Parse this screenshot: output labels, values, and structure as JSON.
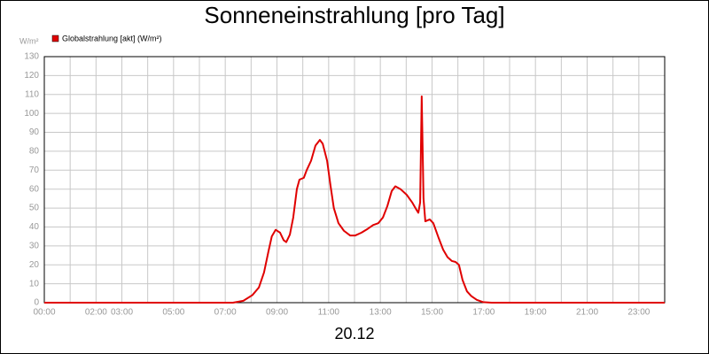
{
  "chart_data": {
    "type": "line",
    "title": "Sonneneinstrahlung [pro Tag]",
    "y_unit": "W/m²",
    "xlabel": "20.12",
    "legend": "top-left",
    "grid": true,
    "xlim": [
      0,
      24
    ],
    "ylim": [
      0,
      130
    ],
    "yticks": [
      0,
      10,
      20,
      30,
      40,
      50,
      60,
      70,
      80,
      90,
      100,
      110,
      120,
      130
    ],
    "xticks": [
      {
        "value": 0,
        "label": "00:00"
      },
      {
        "value": 2,
        "label": "02:00"
      },
      {
        "value": 3,
        "label": "03:00"
      },
      {
        "value": 5,
        "label": "05:00"
      },
      {
        "value": 7,
        "label": "07:00"
      },
      {
        "value": 9,
        "label": "09:00"
      },
      {
        "value": 11,
        "label": "11:00"
      },
      {
        "value": 13,
        "label": "13:00"
      },
      {
        "value": 15,
        "label": "15:00"
      },
      {
        "value": 17,
        "label": "17:00"
      },
      {
        "value": 19,
        "label": "19:00"
      },
      {
        "value": 21,
        "label": "21:00"
      },
      {
        "value": 23,
        "label": "23:00"
      }
    ],
    "xminorticks": [
      1,
      4,
      6,
      8,
      10,
      12,
      14,
      16,
      18,
      20,
      22
    ],
    "x": [
      0,
      7.3,
      7.7,
      8.05,
      8.3,
      8.5,
      8.67,
      8.8,
      8.95,
      9.12,
      9.26,
      9.36,
      9.5,
      9.63,
      9.77,
      9.87,
      10.04,
      10.15,
      10.32,
      10.49,
      10.66,
      10.77,
      10.94,
      11.07,
      11.2,
      11.38,
      11.59,
      11.83,
      12.03,
      12.27,
      12.51,
      12.72,
      12.92,
      13.1,
      13.27,
      13.44,
      13.58,
      13.78,
      14.02,
      14.23,
      14.4,
      14.47,
      14.54,
      14.6,
      14.67,
      14.74,
      14.91,
      15.05,
      15.26,
      15.43,
      15.6,
      15.77,
      15.91,
      16.04,
      16.18,
      16.35,
      16.52,
      16.73,
      16.97,
      17.3,
      24
    ],
    "series": [
      {
        "name": "Globalstrahlung [akt] (W/m²)",
        "color": "#e00000",
        "values": [
          0,
          0,
          1,
          4,
          8,
          16,
          27,
          35,
          38.5,
          37,
          33,
          32,
          36,
          45,
          60,
          65,
          66,
          70,
          75,
          83,
          86,
          84,
          75,
          62,
          50,
          42,
          38,
          35.5,
          35.5,
          37,
          39,
          41,
          42,
          45,
          51,
          59,
          61.5,
          60,
          57,
          53,
          49,
          47.5,
          53,
          109,
          55,
          43,
          44,
          42,
          34,
          28,
          24,
          22,
          21.5,
          20,
          12,
          6,
          3.5,
          1.5,
          0.3,
          0,
          0
        ]
      }
    ]
  }
}
